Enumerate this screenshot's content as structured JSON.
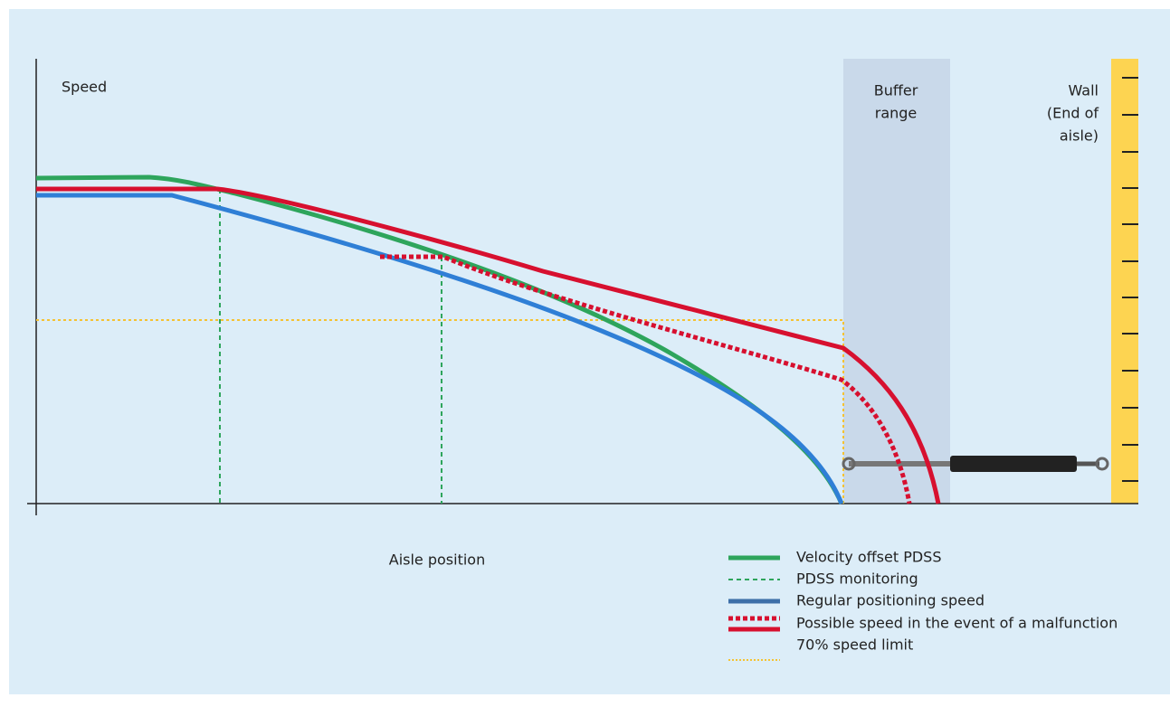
{
  "diagram": {
    "y_axis_label": "Speed",
    "x_axis_label": "Aisle position",
    "buffer_label": [
      "Buffer",
      "range"
    ],
    "wall_label": [
      "Wall",
      "(End of",
      "aisle)"
    ],
    "legend": [
      "Velocity offset PDSS",
      "PDSS monitoring",
      "Regular positioning speed",
      "Possible speed in the event of a malfunction",
      "70% speed limit"
    ]
  }
}
